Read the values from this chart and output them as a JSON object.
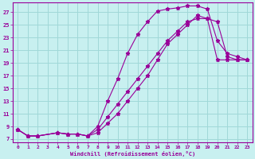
{
  "xlabel": "Windchill (Refroidissement éolien,°C)",
  "bg_color": "#c8f0f0",
  "grid_color": "#a0d8d8",
  "line_color": "#990099",
  "text_color": "#990099",
  "xlim": [
    -0.5,
    23.5
  ],
  "ylim": [
    6.5,
    28.5
  ],
  "xticks": [
    0,
    1,
    2,
    3,
    4,
    5,
    6,
    7,
    8,
    9,
    10,
    11,
    12,
    13,
    14,
    15,
    16,
    17,
    18,
    19,
    20,
    21,
    22,
    23
  ],
  "yticks": [
    7,
    9,
    11,
    13,
    15,
    17,
    19,
    21,
    23,
    25,
    27
  ],
  "line1_x": [
    0,
    1,
    2,
    4,
    5,
    6,
    7,
    8,
    9,
    10,
    11,
    12,
    13,
    14,
    15,
    16,
    17,
    18,
    19,
    20,
    21,
    22,
    23
  ],
  "line1_y": [
    8.5,
    7.5,
    7.5,
    8.0,
    7.8,
    7.8,
    7.5,
    9.0,
    13.0,
    16.5,
    20.5,
    23.5,
    25.5,
    27.2,
    27.5,
    27.7,
    28.0,
    28.0,
    27.5,
    22.5,
    20.5,
    20.0,
    19.5
  ],
  "line2_x": [
    0,
    1,
    2,
    4,
    5,
    6,
    7,
    8,
    9,
    10,
    11,
    12,
    13,
    14,
    15,
    16,
    17,
    18,
    19,
    20,
    21,
    22,
    23
  ],
  "line2_y": [
    8.5,
    7.5,
    7.5,
    8.0,
    7.8,
    7.8,
    7.5,
    8.5,
    10.5,
    12.5,
    14.5,
    16.5,
    18.5,
    20.5,
    22.5,
    24.0,
    25.5,
    26.0,
    26.0,
    25.5,
    20.0,
    19.5,
    19.5
  ],
  "line3_x": [
    0,
    1,
    2,
    4,
    5,
    6,
    7,
    8,
    9,
    10,
    11,
    12,
    13,
    14,
    15,
    16,
    17,
    18,
    19,
    20,
    21,
    22,
    23
  ],
  "line3_y": [
    8.5,
    7.5,
    7.5,
    8.0,
    7.8,
    7.8,
    7.5,
    8.0,
    9.5,
    11.0,
    13.0,
    15.0,
    17.0,
    19.5,
    22.0,
    23.5,
    25.0,
    26.5,
    26.0,
    19.5,
    19.5,
    19.5,
    19.5
  ]
}
